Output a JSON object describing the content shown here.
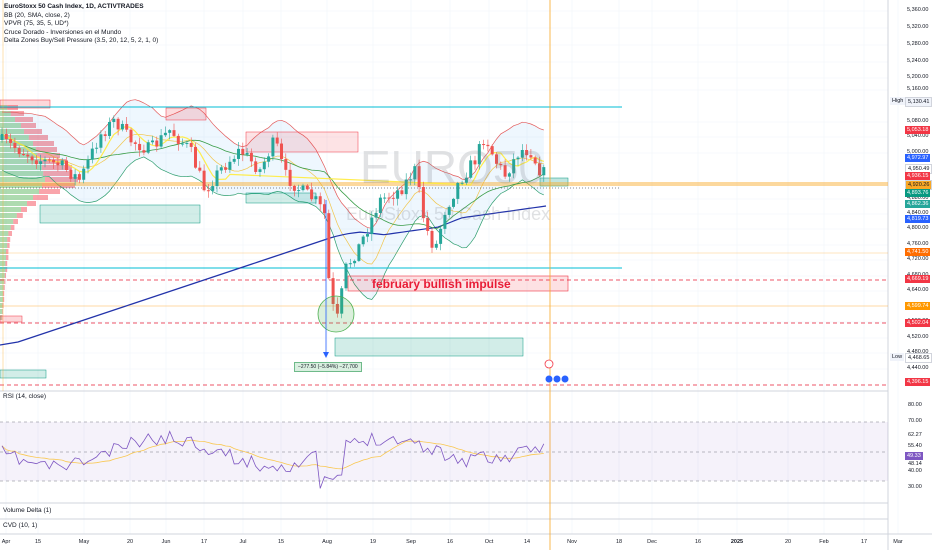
{
  "legend": {
    "title": "EuroStoxx 50 Cash Index, 1D, ACTIVTRADES",
    "indicators": [
      "BB (20, SMA, close, 2)",
      "VPVR (75, 35, 5, UD*)",
      "Cruce Dorado - Inversiones en el Mundo",
      "Delta Zones Buy/Sell Pressure (3.5, 20, 12, 5, 2, 1, 0)"
    ]
  },
  "watermark": {
    "symbol": "EURO50",
    "name": "EuroStoxx 50 Cash Index"
  },
  "annotation": {
    "text": "february bullish impulse"
  },
  "measure": {
    "text": "−277.50 (−5.84%) −27,700"
  },
  "price_axis": {
    "ticks": [
      "5,360.00",
      "5,320.00",
      "5,280.00",
      "5,240.00",
      "5,200.00",
      "5,160.00",
      "5,080.00",
      "5,040.00",
      "5,000.00",
      "4,880.00",
      "4,840.00",
      "4,800.00",
      "4,760.00",
      "4,720.00",
      "4,680.00",
      "4,640.00",
      "4,560.00",
      "4,520.00",
      "4,480.00",
      "4,440.00"
    ],
    "tags": [
      {
        "text": "5,130.41",
        "color": "#f0f3fa",
        "fg": "#131722"
      },
      {
        "text": "5,053.18",
        "color": "#f23645",
        "fg": "#ffffff"
      },
      {
        "text": "4,972.97",
        "color": "#2962ff",
        "fg": "#ffffff"
      },
      {
        "text": "4,950.49",
        "color": "#ffffff",
        "fg": "#131722"
      },
      {
        "text": "4,936.15",
        "color": "#f23645",
        "fg": "#ffffff"
      },
      {
        "text": "4,920.26",
        "color": "#f9a825",
        "fg": "#131722"
      },
      {
        "text": "4,893.76",
        "color": "#089981",
        "fg": "#ffffff"
      },
      {
        "text": "4,862.36",
        "color": "#26a69a",
        "fg": "#ffffff"
      },
      {
        "text": "4,819.73",
        "color": "#2962ff",
        "fg": "#ffffff"
      },
      {
        "text": "4,741.50",
        "color": "#ff6d00",
        "fg": "#ffffff"
      },
      {
        "text": "4,669.19",
        "color": "#f23645",
        "fg": "#ffffff"
      },
      {
        "text": "4,599.74",
        "color": "#ff9800",
        "fg": "#ffffff"
      },
      {
        "text": "4,502.04",
        "color": "#f23645",
        "fg": "#ffffff"
      },
      {
        "text": "4,468.65",
        "color": "#ffffff",
        "fg": "#131722"
      },
      {
        "text": "4,396.15",
        "color": "#f23645",
        "fg": "#ffffff"
      }
    ],
    "high_label": "High",
    "low_label": "Low"
  },
  "rsi": {
    "label": "RSI (14, close)",
    "ticks": [
      "80.00",
      "70.00",
      "62.27",
      "55.40",
      "48.14",
      "40.00",
      "30.00"
    ],
    "tag": {
      "text": "49.33",
      "color": "#7e57c2"
    }
  },
  "volume_delta": {
    "label": "Volume Delta (1)"
  },
  "cvd": {
    "label": "CVD (10, 1)"
  },
  "time_axis": {
    "ticks": [
      "Apr",
      "15",
      "May",
      "20",
      "Jun",
      "17",
      "Jul",
      "15",
      "Aug",
      "19",
      "Sep",
      "16",
      "Oct",
      "14",
      "Nov",
      "18",
      "Dec",
      "16",
      "2025",
      "20",
      "Feb",
      "17",
      "Mar"
    ]
  },
  "colors": {
    "up": "#26a69a",
    "down": "#ef5350",
    "sma": "#2233aa",
    "bb": "#e35a5a",
    "rsi": "#7e57c2"
  }
}
